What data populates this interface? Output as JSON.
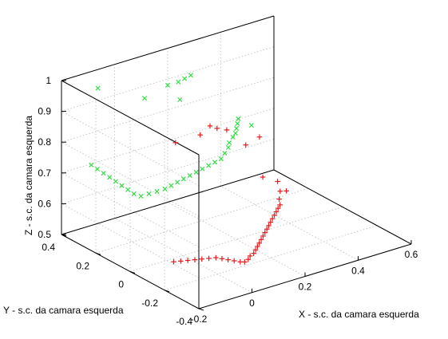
{
  "chart_data": {
    "type": "scatter",
    "projection": "3d",
    "title": "",
    "xlabel": "X - s.c. da camara esquerda",
    "ylabel": "Y - s.c. da camara esquerda",
    "zlabel": "Z - s.c. da camara esquerda",
    "xlim": [
      -0.2,
      0.6
    ],
    "ylim": [
      -0.4,
      0.4
    ],
    "zlim": [
      0.5,
      1
    ],
    "x_ticks": [
      "-0.2",
      "0",
      "0.2",
      "0.4",
      "0.6"
    ],
    "y_ticks": [
      "-0.4",
      "-0.2",
      "0",
      "0.2",
      "0.4"
    ],
    "z_ticks": [
      "0.5",
      "0.6",
      "0.7",
      "0.8",
      "0.9",
      "1"
    ],
    "grid": true,
    "legend": false,
    "colors": {
      "series_1": "#e8191b",
      "series_2": "#33dd44",
      "grid": "#c8c8c8",
      "axis": "#000000"
    },
    "series": [
      {
        "marker": "plus",
        "color": "#e8191b",
        "points": [
          [
            -0.12,
            -0.13,
            0.55
          ],
          [
            -0.1,
            -0.14,
            0.55
          ],
          [
            -0.08,
            -0.15,
            0.55
          ],
          [
            -0.06,
            -0.16,
            0.55
          ],
          [
            -0.04,
            -0.17,
            0.55
          ],
          [
            -0.02,
            -0.18,
            0.55
          ],
          [
            0.0,
            -0.19,
            0.55
          ],
          [
            0.01,
            -0.21,
            0.55
          ],
          [
            0.02,
            -0.23,
            0.55
          ],
          [
            0.03,
            -0.25,
            0.55
          ],
          [
            0.04,
            -0.27,
            0.55
          ],
          [
            0.05,
            -0.28,
            0.55
          ],
          [
            0.07,
            -0.27,
            0.55
          ],
          [
            0.09,
            -0.25,
            0.55
          ],
          [
            0.11,
            -0.24,
            0.55
          ],
          [
            0.13,
            -0.22,
            0.55
          ],
          [
            0.15,
            -0.2,
            0.55
          ],
          [
            0.17,
            -0.18,
            0.55
          ],
          [
            0.19,
            -0.16,
            0.55
          ],
          [
            0.21,
            -0.14,
            0.55
          ],
          [
            0.23,
            -0.12,
            0.55
          ],
          [
            0.25,
            -0.1,
            0.55
          ],
          [
            0.27,
            -0.08,
            0.55
          ],
          [
            0.29,
            -0.06,
            0.55
          ],
          [
            0.31,
            -0.04,
            0.55
          ],
          [
            0.33,
            -0.02,
            0.55
          ],
          [
            0.35,
            0.0,
            0.55
          ],
          [
            0.37,
            0.02,
            0.55
          ],
          [
            0.39,
            0.04,
            0.55
          ],
          [
            0.4,
            0.06,
            0.56
          ],
          [
            0.41,
            0.07,
            0.58
          ],
          [
            0.44,
            0.08,
            0.57
          ],
          [
            0.42,
            0.1,
            0.6
          ],
          [
            0.39,
            0.14,
            0.61
          ],
          [
            0.41,
            0.19,
            0.72
          ],
          [
            0.1,
            0.2,
            0.78
          ],
          [
            0.18,
            0.18,
            0.79
          ],
          [
            0.23,
            0.2,
            0.8
          ],
          [
            0.25,
            0.19,
            0.79
          ],
          [
            0.28,
            0.18,
            0.78
          ],
          [
            0.3,
            0.1,
            0.75
          ]
        ]
      },
      {
        "marker": "x",
        "color": "#33dd44",
        "points": [
          [
            -0.12,
            0.35,
            0.72
          ],
          [
            -0.11,
            0.33,
            0.71
          ],
          [
            -0.1,
            0.31,
            0.7
          ],
          [
            -0.09,
            0.29,
            0.69
          ],
          [
            -0.08,
            0.27,
            0.68
          ],
          [
            -0.07,
            0.25,
            0.67
          ],
          [
            -0.06,
            0.23,
            0.66
          ],
          [
            -0.05,
            0.21,
            0.65
          ],
          [
            -0.03,
            0.2,
            0.64
          ],
          [
            0.0,
            0.2,
            0.64
          ],
          [
            0.03,
            0.2,
            0.64
          ],
          [
            0.06,
            0.2,
            0.64
          ],
          [
            0.09,
            0.21,
            0.64
          ],
          [
            0.12,
            0.22,
            0.64
          ],
          [
            0.15,
            0.23,
            0.64
          ],
          [
            0.18,
            0.24,
            0.64
          ],
          [
            0.21,
            0.25,
            0.64
          ],
          [
            0.24,
            0.26,
            0.64
          ],
          [
            0.27,
            0.27,
            0.64
          ],
          [
            0.3,
            0.28,
            0.64
          ],
          [
            0.33,
            0.29,
            0.64
          ],
          [
            0.35,
            0.3,
            0.65
          ],
          [
            0.37,
            0.31,
            0.66
          ],
          [
            0.38,
            0.32,
            0.67
          ],
          [
            0.4,
            0.33,
            0.68
          ],
          [
            0.41,
            0.33,
            0.69
          ],
          [
            0.42,
            0.34,
            0.7
          ],
          [
            0.43,
            0.35,
            0.71
          ],
          [
            0.47,
            0.33,
            0.7
          ],
          [
            0.44,
            0.36,
            0.72
          ],
          [
            0.1,
            0.38,
            0.87
          ],
          [
            0.2,
            0.4,
            0.88
          ],
          [
            0.24,
            0.4,
            0.88
          ],
          [
            0.27,
            0.41,
            0.88
          ],
          [
            0.3,
            0.42,
            0.88
          ],
          [
            0.22,
            0.36,
            0.84
          ],
          [
            -0.05,
            0.42,
            0.93
          ]
        ]
      }
    ]
  }
}
